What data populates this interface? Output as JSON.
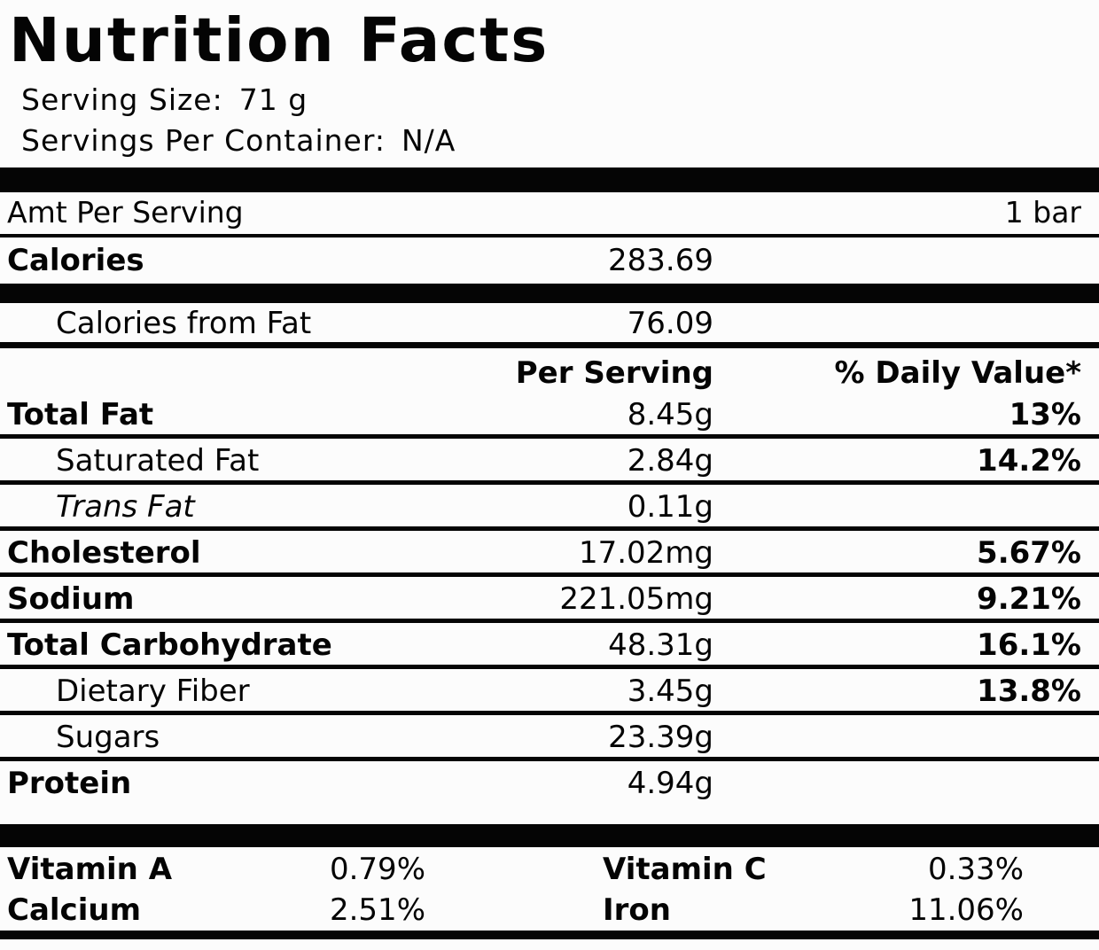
{
  "colors": {
    "ink": "#050505",
    "paper": "#fcfcfc"
  },
  "title": "Nutrition Facts",
  "serving": {
    "size_label": "Serving Size:",
    "size_value": "71 g",
    "per_container_label": "Servings Per Container:",
    "per_container_value": "N/A"
  },
  "amount_header": {
    "left": "Amt Per Serving",
    "right": "1 bar"
  },
  "calories": {
    "label": "Calories",
    "value": "283.69"
  },
  "calories_from_fat": {
    "label": "Calories from Fat",
    "value": "76.09"
  },
  "columns": {
    "per_serving": "Per Serving",
    "daily_value": "% Daily Value*"
  },
  "nutrients": [
    {
      "name": "Total Fat",
      "amount": "8.45g",
      "dv": "13%"
    },
    {
      "name": "Saturated Fat",
      "amount": "2.84g",
      "dv": "14.2%"
    },
    {
      "name": "Trans Fat",
      "amount": "0.11g",
      "dv": ""
    },
    {
      "name": "Cholesterol",
      "amount": "17.02mg",
      "dv": "5.67%"
    },
    {
      "name": "Sodium",
      "amount": "221.05mg",
      "dv": "9.21%"
    },
    {
      "name": "Total Carbohydrate",
      "amount": "48.31g",
      "dv": "16.1%"
    },
    {
      "name": "Dietary Fiber",
      "amount": "3.45g",
      "dv": "13.8%"
    },
    {
      "name": "Sugars",
      "amount": "23.39g",
      "dv": ""
    },
    {
      "name": "Protein",
      "amount": "4.94g",
      "dv": ""
    }
  ],
  "micronutrients": [
    {
      "name": "Vitamin A",
      "value": "0.79%"
    },
    {
      "name": "Vitamin C",
      "value": "0.33%"
    },
    {
      "name": "Calcium",
      "value": "2.51%"
    },
    {
      "name": "Iron",
      "value": "11.06%"
    }
  ]
}
